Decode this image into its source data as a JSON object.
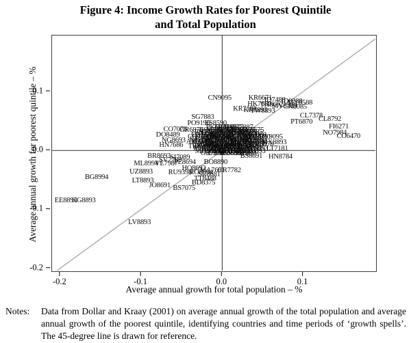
{
  "figure": {
    "title_line1": "Figure 4: Income Growth Rates for Poorest Quintile",
    "title_line2": "and Total Population"
  },
  "notes": {
    "label": "Notes:",
    "text": "Data from Dollar and Kraay (2001) on average annual growth of the total population and average annual growth of the poorest quintile, identifying countries and time periods of ‘growth spells’. The 45-degree line is drawn for reference."
  },
  "chart_data": {
    "type": "scatter",
    "title": "Figure 4: Income Growth Rates for Poorest Quintile and Total Population",
    "xlabel": "Average annual growth for total population – %",
    "ylabel": "Average annual growth for poorest quintile – %",
    "xlim": [
      -0.21,
      0.19
    ],
    "ylim": [
      -0.205,
      0.195
    ],
    "xticks": [
      -0.2,
      -0.1,
      0.0,
      0.1
    ],
    "yticks": [
      -0.2,
      -0.1,
      0.0,
      0.1
    ],
    "grid": false,
    "zero_lines": true,
    "reference_line": "45-degree line drawn for reference",
    "marker": "country-code labels (country + period of growth spell)",
    "line_color": "#b5b5b5",
    "points": [
      [
        "CN9095",
        -0.003,
        0.088
      ],
      [
        "KR6671",
        0.047,
        0.088
      ],
      [
        "ID7488",
        0.065,
        0.085
      ],
      [
        "ID8288",
        0.086,
        0.083
      ],
      [
        "MY8588",
        0.096,
        0.08
      ],
      [
        "HK7680",
        0.046,
        0.078
      ],
      [
        "TH8692",
        0.061,
        0.077
      ],
      [
        "MY8489",
        0.077,
        0.075
      ],
      [
        "CN8085",
        0.09,
        0.073
      ],
      [
        "KR7188",
        0.028,
        0.07
      ],
      [
        "KR8893",
        0.041,
        0.068
      ],
      [
        "TW8893",
        0.05,
        0.066
      ],
      [
        "SG7883",
        -0.024,
        0.056
      ],
      [
        "PO9196",
        -0.029,
        0.046
      ],
      [
        "ES8590",
        -0.008,
        0.046
      ],
      [
        "CL7378",
        0.11,
        0.058
      ],
      [
        "PT6870",
        0.098,
        0.048
      ],
      [
        "CL8792",
        0.133,
        0.052
      ],
      [
        "FI6271",
        0.144,
        0.04
      ],
      [
        "NO7984",
        0.139,
        0.029
      ],
      [
        "CO6470",
        0.156,
        0.023
      ],
      [
        "CO7076",
        -0.058,
        0.035
      ],
      [
        "GR6874",
        -0.038,
        0.034
      ],
      [
        "DO8489",
        -0.067,
        0.026
      ],
      [
        "NG8693",
        -0.06,
        0.017
      ],
      [
        "HN7686",
        -0.063,
        0.008
      ],
      [
        "SI7089",
        -0.052,
        -0.012
      ],
      [
        "BR8693",
        -0.078,
        -0.01
      ],
      [
        "SV7789",
        -0.064,
        -0.017
      ],
      [
        "ML8994",
        -0.094,
        -0.023
      ],
      [
        "VE7987",
        -0.069,
        -0.023
      ],
      [
        "PE8694",
        -0.046,
        -0.021
      ],
      [
        "HO8692",
        -0.035,
        -0.031
      ],
      [
        "UZ8893",
        -0.1,
        -0.037
      ],
      [
        "RU9398",
        -0.052,
        -0.038
      ],
      [
        "RO8994",
        -0.026,
        -0.038
      ],
      [
        "BG8994",
        -0.155,
        -0.046
      ],
      [
        "LT8893",
        -0.098,
        -0.052
      ],
      [
        "TT8488",
        -0.021,
        -0.048
      ],
      [
        "BD8375",
        -0.023,
        -0.055
      ],
      [
        "JO8691",
        -0.077,
        -0.06
      ],
      [
        "BS7075",
        -0.047,
        -0.065
      ],
      [
        "EE8893",
        -0.193,
        -0.086
      ],
      [
        "KG8893",
        -0.171,
        -0.086
      ],
      [
        "LV8893",
        -0.102,
        -0.123
      ],
      [
        "BS8691",
        0.036,
        -0.01
      ],
      [
        "HN8784",
        0.072,
        -0.011
      ],
      [
        "LT7181",
        0.068,
        0.003
      ],
      [
        "MX8893",
        0.064,
        0.013
      ],
      [
        "UY9095",
        0.06,
        0.022
      ],
      [
        "BO8890",
        -0.008,
        -0.021
      ],
      [
        "MA7691",
        -0.012,
        -0.034
      ],
      [
        "CR7782",
        0.009,
        -0.034
      ],
      [
        "SR8681",
        -0.016,
        -0.042
      ],
      [
        "PK6070",
        -0.006,
        0.038
      ],
      [
        "TR6575",
        0.004,
        0.038
      ],
      [
        "JP6675",
        0.014,
        0.038
      ],
      [
        "BR7887",
        0.024,
        0.038
      ],
      [
        "EG6575",
        -0.014,
        0.034
      ],
      [
        "MA6575",
        -0.004,
        0.034
      ],
      [
        "IN6675",
        0.006,
        0.034
      ],
      [
        "TH6675",
        0.016,
        0.034
      ],
      [
        "MX6675",
        0.026,
        0.034
      ],
      [
        "MY6675",
        0.036,
        0.034
      ],
      [
        "PH7085",
        -0.02,
        0.03
      ],
      [
        "IN6570",
        -0.012,
        0.03
      ],
      [
        "TR7080",
        -0.004,
        0.03
      ],
      [
        "JP6065",
        0.004,
        0.03
      ],
      [
        "MX7080",
        0.012,
        0.03
      ],
      [
        "BR7680",
        0.02,
        0.03
      ],
      [
        "TH7585",
        0.028,
        0.03
      ],
      [
        "PK7085",
        0.036,
        0.03
      ],
      [
        "EG7585",
        -0.024,
        0.026
      ],
      [
        "MA7080",
        -0.016,
        0.026
      ],
      [
        "TN7580",
        -0.008,
        0.026
      ],
      [
        "US6070",
        0.0,
        0.026
      ],
      [
        "FR6070",
        0.008,
        0.026
      ],
      [
        "IT6575",
        0.016,
        0.026
      ],
      [
        "ES6070",
        0.024,
        0.026
      ],
      [
        "PT6070",
        0.032,
        0.026
      ],
      [
        "GR7080",
        0.04,
        0.026
      ],
      [
        "CO7080",
        -0.028,
        0.022
      ],
      [
        "EC7080",
        -0.02,
        0.022
      ],
      [
        "PE6070",
        -0.012,
        0.022
      ],
      [
        "CR6070",
        -0.004,
        0.022
      ],
      [
        "PA6070",
        0.004,
        0.022
      ],
      [
        "JM6070",
        0.012,
        0.022
      ],
      [
        "DO7080",
        0.02,
        0.022
      ],
      [
        "GT7080",
        0.028,
        0.022
      ],
      [
        "LK7080",
        0.036,
        0.022
      ],
      [
        "MY7080",
        0.044,
        0.022
      ],
      [
        "KE7080",
        -0.026,
        0.018
      ],
      [
        "GH6070",
        -0.018,
        0.018
      ],
      [
        "SN7080",
        -0.01,
        0.018
      ],
      [
        "CI7080",
        -0.002,
        0.018
      ],
      [
        "NG7080",
        0.006,
        0.018
      ],
      [
        "ZM6070",
        0.014,
        0.018
      ],
      [
        "TZ7080",
        0.022,
        0.018
      ],
      [
        "UG8090",
        0.03,
        0.018
      ],
      [
        "MW7080",
        0.038,
        0.018
      ],
      [
        "AR6070",
        -0.03,
        0.014
      ],
      [
        "CL6070",
        -0.022,
        0.014
      ],
      [
        "UY6070",
        -0.014,
        0.014
      ],
      [
        "VE6070",
        -0.006,
        0.014
      ],
      [
        "BO7080",
        0.002,
        0.014
      ],
      [
        "PY7080",
        0.01,
        0.014
      ],
      [
        "BR6070",
        0.018,
        0.014
      ],
      [
        "MX6070",
        0.026,
        0.014
      ],
      [
        "CO6070",
        0.034,
        0.014
      ],
      [
        "PE7080",
        0.042,
        0.014
      ],
      [
        "IN7080",
        -0.024,
        0.01
      ],
      [
        "BD7080",
        -0.016,
        0.01
      ],
      [
        "NP7080",
        -0.008,
        0.01
      ],
      [
        "PK7588",
        0.0,
        0.01
      ],
      [
        "LK6070",
        0.008,
        0.01
      ],
      [
        "TH6070",
        0.016,
        0.01
      ],
      [
        "PH6070",
        0.024,
        0.01
      ],
      [
        "ID6070",
        0.032,
        0.01
      ],
      [
        "KR7080",
        0.04,
        0.01
      ],
      [
        "MY6070",
        0.048,
        0.01
      ],
      [
        "TR8090",
        -0.028,
        0.006
      ],
      [
        "EG6070",
        -0.02,
        0.006
      ],
      [
        "MA8090",
        -0.012,
        0.006
      ],
      [
        "TN8090",
        -0.004,
        0.006
      ],
      [
        "JO7080",
        0.004,
        0.006
      ],
      [
        "IR7080",
        0.012,
        0.006
      ],
      [
        "DZ7080",
        0.02,
        0.006
      ],
      [
        "SD7080",
        0.028,
        0.006
      ],
      [
        "YE8090",
        0.036,
        0.006
      ],
      [
        "PL8090",
        -0.022,
        0.002
      ],
      [
        "HU8090",
        -0.014,
        0.002
      ],
      [
        "CZ8993",
        -0.006,
        0.002
      ],
      [
        "SK8993",
        0.002,
        0.002
      ],
      [
        "RO8090",
        0.01,
        0.002
      ],
      [
        "BG8090",
        0.018,
        0.002
      ],
      [
        "UA8993",
        0.026,
        0.002
      ],
      [
        "RU8893",
        0.034,
        0.002
      ],
      [
        "BY8893",
        0.042,
        0.002
      ],
      [
        "MD8893",
        -0.018,
        -0.002
      ],
      [
        "AM8893",
        -0.01,
        -0.002
      ],
      [
        "GE8893",
        -0.002,
        -0.002
      ],
      [
        "AZ8893",
        0.006,
        -0.002
      ],
      [
        "KZ8893",
        0.014,
        -0.002
      ],
      [
        "TJ8893",
        0.022,
        -0.002
      ],
      [
        "TM8893",
        0.03,
        -0.002
      ],
      [
        "MK8893",
        0.038,
        -0.002
      ],
      [
        "GB7080",
        -0.012,
        -0.006
      ],
      [
        "US7080",
        -0.004,
        -0.006
      ],
      [
        "CA7080",
        0.004,
        -0.006
      ],
      [
        "AU7080",
        0.012,
        -0.006
      ],
      [
        "NZ7080",
        0.02,
        -0.006
      ],
      [
        "SE7080",
        0.028,
        -0.006
      ]
    ]
  }
}
